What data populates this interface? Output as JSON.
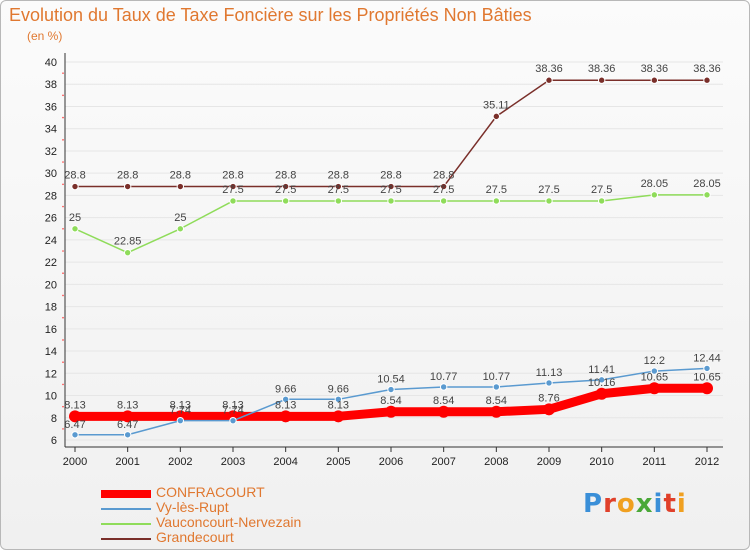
{
  "header": {
    "title": "Evolution du Taux de Taxe Foncière sur les Propriétés Non Bâties",
    "unit": "(en %)"
  },
  "logo": {
    "text": "Proxiti",
    "alt": "Proxiti logo"
  },
  "colors": {
    "title": "#e07830",
    "grid": "#e6e6e6",
    "axis": "#333333"
  },
  "chart_data": {
    "type": "line",
    "title": "Evolution du Taux de Taxe Foncière sur les Propriétés Non Bâties",
    "ylabel": "(en %)",
    "xlabel": "",
    "x": [
      "2000",
      "2001",
      "2002",
      "2003",
      "2004",
      "2005",
      "2006",
      "2007",
      "2008",
      "2009",
      "2010",
      "2011",
      "2012"
    ],
    "ylim": [
      6,
      40
    ],
    "yticks": [
      6,
      8,
      10,
      12,
      14,
      16,
      18,
      20,
      22,
      24,
      26,
      28,
      30,
      32,
      34,
      36,
      38,
      40
    ],
    "grid": true,
    "legend_position": "bottom-left",
    "series": [
      {
        "name": "CONFRACOURT",
        "color": "#ff0000",
        "values": [
          8.13,
          8.13,
          8.13,
          8.13,
          8.13,
          8.13,
          8.54,
          8.54,
          8.54,
          8.76,
          10.16,
          10.65,
          10.65
        ],
        "labels": [
          "8.13",
          "8.13",
          "8.13",
          "8.13",
          "8.13",
          "8.13",
          "8.54",
          "8.54",
          "8.54",
          "8.76",
          "10.16",
          "10.65",
          "10.65"
        ]
      },
      {
        "name": "Vy-lès-Rupt",
        "color": "#5a9ad0",
        "values": [
          6.47,
          6.47,
          7.74,
          7.74,
          9.66,
          9.66,
          10.54,
          10.77,
          10.77,
          11.13,
          11.41,
          12.2,
          12.44
        ],
        "labels": [
          "6.47",
          "6.47",
          "7.74",
          "7.74",
          "9.66",
          "9.66",
          "10.54",
          "10.77",
          "10.77",
          "11.13",
          "11.41",
          "12.2",
          "12.44"
        ]
      },
      {
        "name": "Vauconcourt-Nervezain",
        "color": "#8fdc5a",
        "values": [
          25,
          22.85,
          25,
          27.5,
          27.5,
          27.5,
          27.5,
          27.5,
          27.5,
          27.5,
          27.5,
          28.05,
          28.05
        ],
        "labels": [
          "25",
          "22.85",
          "25",
          "27.5",
          "27.5",
          "27.5",
          "27.5",
          "27.5",
          "27.5",
          "27.5",
          "27.5",
          "28.05",
          "28.05"
        ]
      },
      {
        "name": "Grandecourt",
        "color": "#7a2f2a",
        "values": [
          28.8,
          28.8,
          28.8,
          28.8,
          28.8,
          28.8,
          28.8,
          28.8,
          35.11,
          38.36,
          38.36,
          38.36,
          38.36
        ],
        "labels": [
          "28.8",
          "28.8",
          "28.8",
          "28.8",
          "28.8",
          "28.8",
          "28.8",
          "28.8",
          "35.11",
          "38.36",
          "38.36",
          "38.36",
          "38.36"
        ]
      }
    ]
  }
}
